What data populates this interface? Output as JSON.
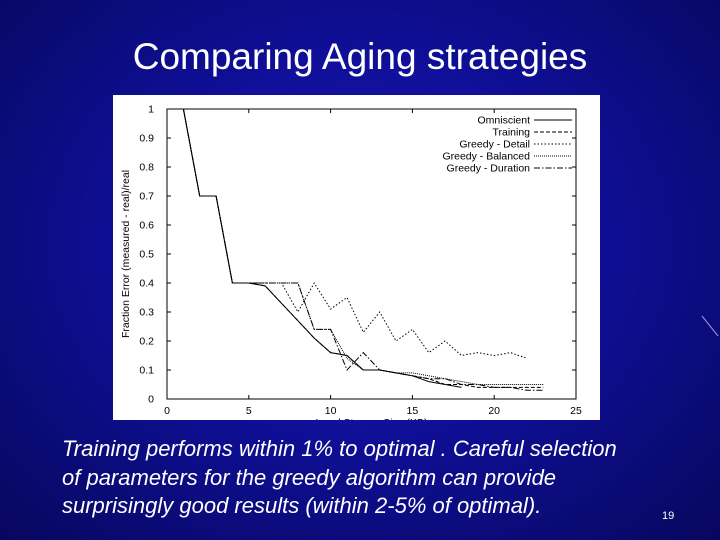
{
  "slide": {
    "title": "Comparing Aging strategies",
    "caption_lines": [
      "Training performs within 1% to optimal . Careful selection",
      "of parameters for the greedy algorithm can provide",
      "surprisingly good results (within 2-5% of optimal)."
    ],
    "page_number": "19"
  },
  "colors": {
    "background": "#0f0f98",
    "title_text": "#ffffff",
    "chart_background": "#ffffff",
    "chart_ink": "#000000"
  },
  "chart_data": {
    "type": "line",
    "xlabel": "Local Storage Size (KB)",
    "ylabel": "Fraction Error (measured - real)/real",
    "xlim": [
      0,
      25
    ],
    "ylim": [
      0,
      1
    ],
    "x_ticks": [
      0,
      5,
      10,
      15,
      20,
      25
    ],
    "y_ticks": [
      0,
      0.1,
      0.2,
      0.3,
      0.4,
      0.5,
      0.6,
      0.7,
      0.8,
      0.9,
      1
    ],
    "grid": false,
    "legend_position": "top-right",
    "series": [
      {
        "name": "Omniscient",
        "dash": "solid",
        "x": [
          1,
          2,
          3,
          4,
          5,
          6,
          7,
          8,
          9,
          10,
          11,
          12,
          13,
          14,
          15,
          16,
          17,
          18
        ],
        "y": [
          1.0,
          0.7,
          0.7,
          0.4,
          0.4,
          0.39,
          0.33,
          0.27,
          0.21,
          0.16,
          0.15,
          0.1,
          0.1,
          0.09,
          0.08,
          0.06,
          0.05,
          0.04
        ]
      },
      {
        "name": "Training",
        "dash": "dashed",
        "x": [
          1,
          2,
          3,
          4,
          5,
          6,
          7,
          8,
          9,
          10,
          11,
          12,
          13,
          14,
          15,
          16,
          17,
          18,
          19,
          20,
          21,
          22,
          23
        ],
        "y": [
          1.0,
          0.7,
          0.7,
          0.4,
          0.4,
          0.39,
          0.33,
          0.27,
          0.21,
          0.16,
          0.15,
          0.1,
          0.1,
          0.09,
          0.08,
          0.07,
          0.05,
          0.05,
          0.04,
          0.04,
          0.04,
          0.04,
          0.04
        ]
      },
      {
        "name": "Greedy - Detail",
        "dash": "dotted",
        "x": [
          1,
          2,
          3,
          4,
          5,
          6,
          7,
          8,
          9,
          10,
          11,
          12,
          13,
          14,
          15,
          16,
          17,
          18,
          19,
          20,
          21,
          22
        ],
        "y": [
          1.0,
          0.7,
          0.7,
          0.4,
          0.4,
          0.4,
          0.4,
          0.3,
          0.4,
          0.31,
          0.35,
          0.23,
          0.3,
          0.2,
          0.24,
          0.16,
          0.2,
          0.15,
          0.16,
          0.15,
          0.16,
          0.14
        ]
      },
      {
        "name": "Greedy - Balanced",
        "dash": "fine-dotted",
        "x": [
          1,
          2,
          3,
          4,
          5,
          6,
          7,
          8,
          9,
          10,
          11,
          12,
          13,
          14,
          15,
          16,
          17,
          18,
          19,
          20,
          21,
          22,
          23
        ],
        "y": [
          1.0,
          0.7,
          0.7,
          0.4,
          0.4,
          0.4,
          0.4,
          0.4,
          0.24,
          0.24,
          0.14,
          0.1,
          0.1,
          0.09,
          0.09,
          0.08,
          0.07,
          0.06,
          0.05,
          0.05,
          0.05,
          0.05,
          0.05
        ]
      },
      {
        "name": "Greedy - Duration",
        "dash": "dash-dot",
        "x": [
          1,
          2,
          3,
          4,
          5,
          6,
          7,
          8,
          9,
          10,
          11,
          12,
          13,
          14,
          15,
          16,
          17,
          18,
          19,
          20,
          21,
          22,
          23
        ],
        "y": [
          1.0,
          0.7,
          0.7,
          0.4,
          0.4,
          0.4,
          0.4,
          0.4,
          0.24,
          0.24,
          0.1,
          0.16,
          0.1,
          0.09,
          0.08,
          0.07,
          0.07,
          0.05,
          0.05,
          0.04,
          0.04,
          0.03,
          0.03
        ]
      }
    ]
  }
}
